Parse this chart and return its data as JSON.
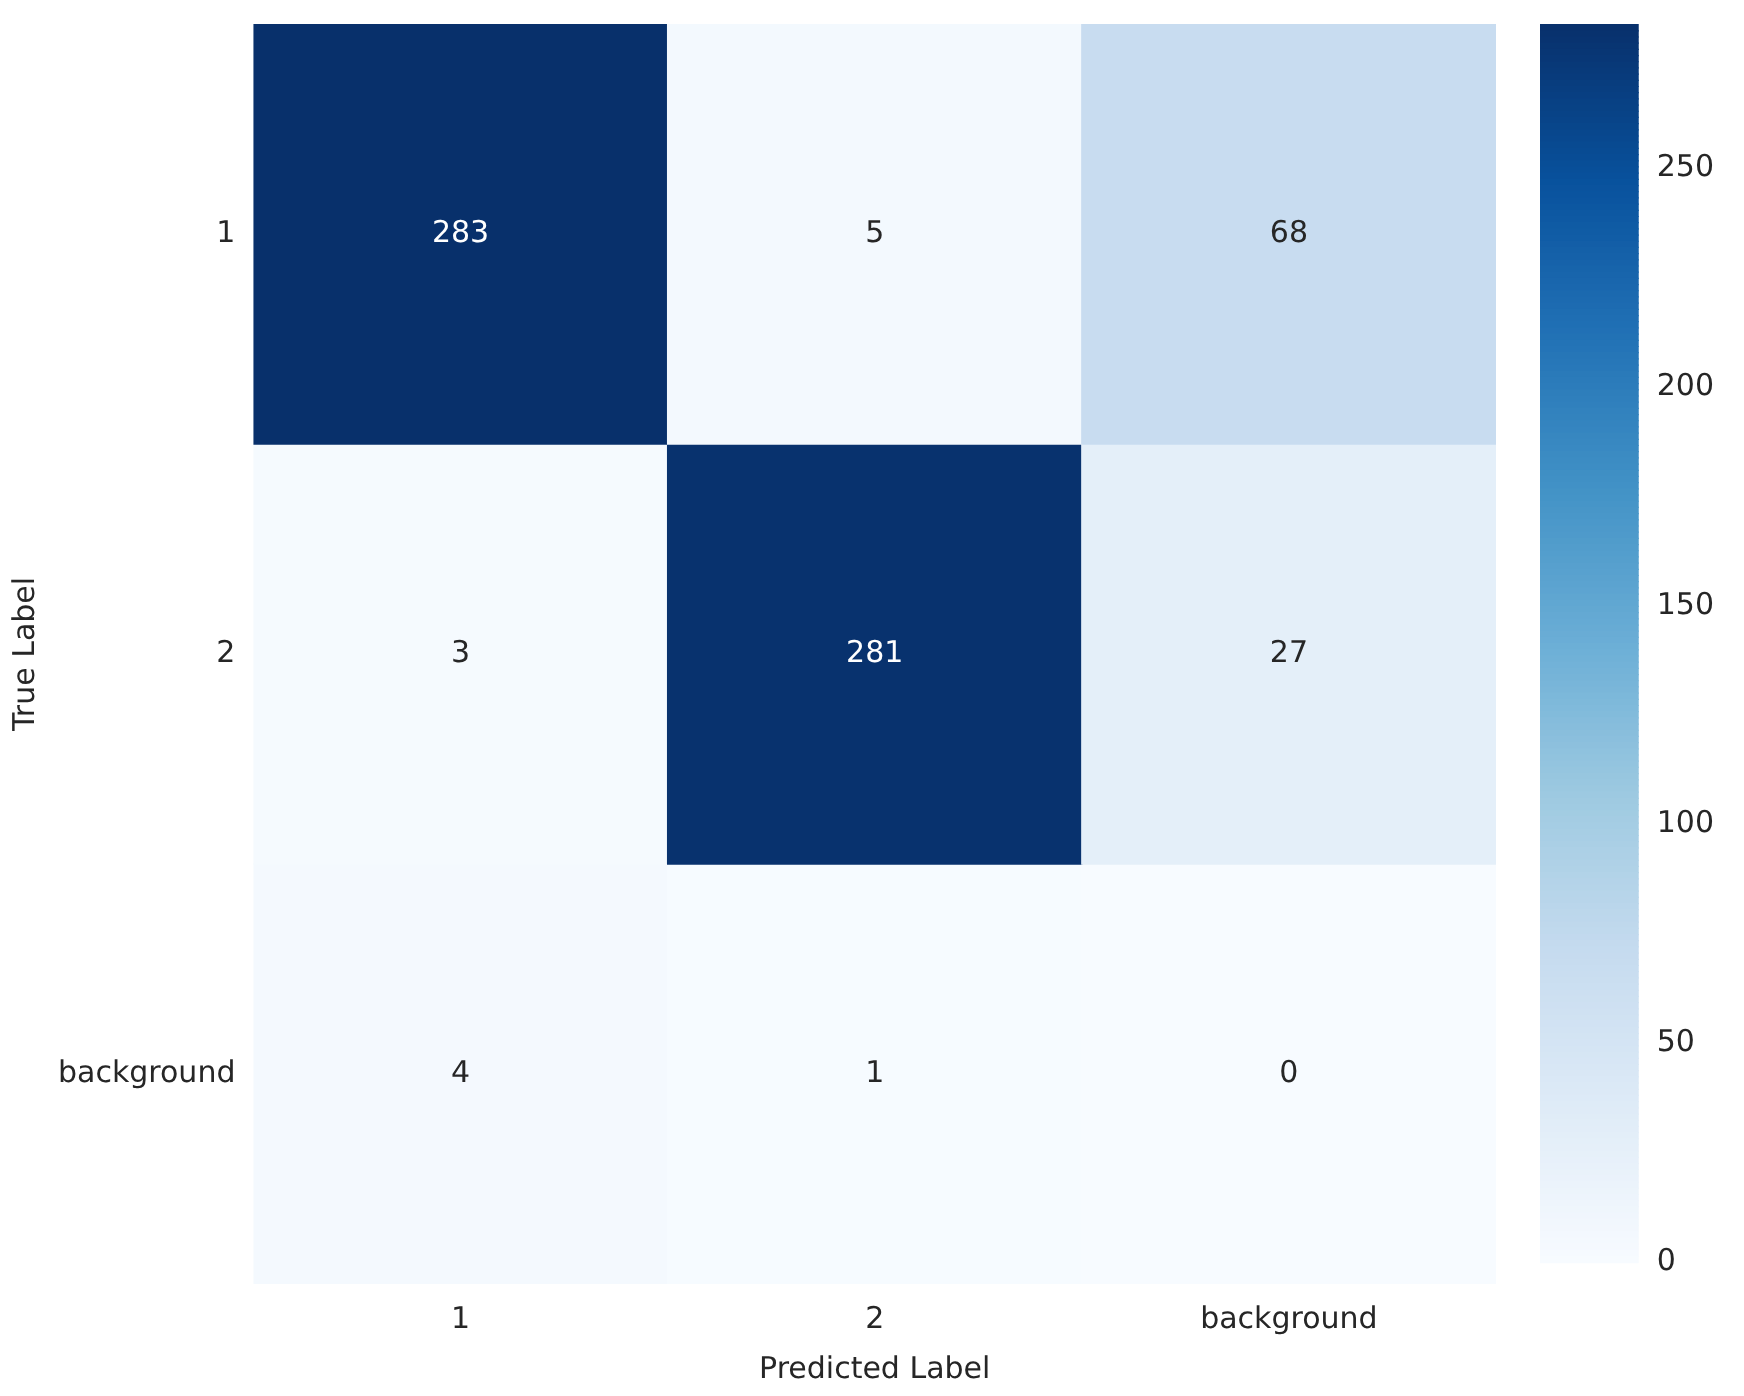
{
  "chart_data": {
    "type": "heatmap",
    "xlabel": "Predicted Label",
    "ylabel": "True Label",
    "categories": [
      "1",
      "2",
      "background"
    ],
    "y_categories": [
      "1",
      "2",
      "background"
    ],
    "cells": [
      [
        283,
        5,
        68
      ],
      [
        3,
        281,
        27
      ],
      [
        4,
        1,
        0
      ]
    ],
    "clim": [
      0,
      283
    ],
    "cticks": [
      0,
      50,
      100,
      150,
      200,
      250
    ],
    "data_labels": true
  }
}
